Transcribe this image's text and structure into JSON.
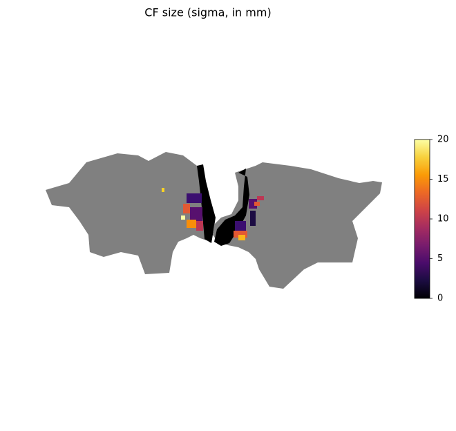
{
  "chart_data": {
    "type": "flatmap",
    "title": "CF size (sigma, in mm)",
    "colormap": "inferno",
    "clim": [
      0,
      20
    ],
    "cticks": [
      0,
      5,
      10,
      15,
      20
    ]
  }
}
